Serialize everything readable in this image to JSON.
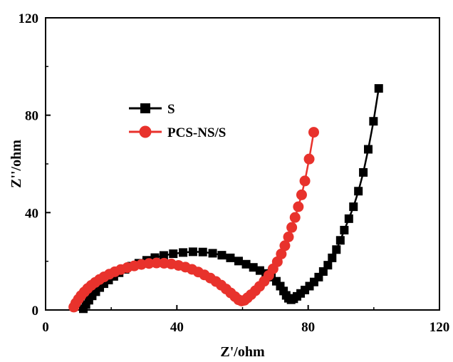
{
  "chart_data": {
    "type": "scatter",
    "xlabel": "Z'/ohm",
    "ylabel": "Z''/ohm",
    "xlim": [
      0,
      120
    ],
    "ylim": [
      0,
      120
    ],
    "xticks": [
      "0",
      "40",
      "80",
      "120"
    ],
    "yticks": [
      "0",
      "40",
      "80",
      "120"
    ],
    "legend_position": "upper-left",
    "grid": false,
    "series": [
      {
        "name": "S",
        "color": "#000000",
        "marker": "square",
        "points": [
          [
            11.5,
            0.5
          ],
          [
            12.3,
            2.2
          ],
          [
            13.2,
            4.0
          ],
          [
            14.2,
            5.8
          ],
          [
            15.3,
            7.5
          ],
          [
            16.5,
            9.2
          ],
          [
            17.8,
            10.8
          ],
          [
            19.2,
            12.3
          ],
          [
            20.8,
            13.8
          ],
          [
            22.4,
            15.3
          ],
          [
            24.2,
            16.7
          ],
          [
            26.2,
            18.0
          ],
          [
            28.4,
            19.2
          ],
          [
            30.8,
            20.4
          ],
          [
            33.3,
            21.5
          ],
          [
            36.0,
            22.4
          ],
          [
            38.9,
            23.1
          ],
          [
            41.9,
            23.6
          ],
          [
            44.9,
            23.9
          ],
          [
            47.9,
            23.8
          ],
          [
            50.9,
            23.3
          ],
          [
            53.7,
            22.5
          ],
          [
            56.3,
            21.4
          ],
          [
            58.8,
            20.1
          ],
          [
            61.1,
            18.8
          ],
          [
            63.3,
            17.5
          ],
          [
            65.3,
            16.2
          ],
          [
            67.1,
            15.0
          ],
          [
            68.8,
            13.5
          ],
          [
            70.3,
            11.8
          ],
          [
            71.5,
            9.8
          ],
          [
            72.5,
            7.8
          ],
          [
            73.3,
            6.0
          ],
          [
            74.0,
            4.8
          ],
          [
            74.8,
            4.2
          ],
          [
            75.6,
            4.6
          ],
          [
            76.6,
            5.6
          ],
          [
            77.7,
            6.8
          ],
          [
            79.0,
            8.2
          ],
          [
            80.4,
            9.8
          ],
          [
            81.8,
            11.5
          ],
          [
            83.2,
            13.5
          ],
          [
            84.6,
            15.8
          ],
          [
            86.0,
            18.4
          ],
          [
            87.3,
            21.4
          ],
          [
            88.6,
            24.8
          ],
          [
            89.8,
            28.6
          ],
          [
            91.0,
            32.8
          ],
          [
            92.4,
            37.5
          ],
          [
            93.8,
            42.4
          ],
          [
            95.3,
            48.8
          ],
          [
            96.8,
            56.5
          ],
          [
            98.3,
            66.0
          ],
          [
            99.9,
            77.5
          ],
          [
            101.5,
            91.0
          ]
        ]
      },
      {
        "name": "PCS-NS/S",
        "color": "#e8322c",
        "marker": "circle",
        "points": [
          [
            8.6,
            1.2
          ],
          [
            9.2,
            2.8
          ],
          [
            10.0,
            4.4
          ],
          [
            10.8,
            5.9
          ],
          [
            11.8,
            7.4
          ],
          [
            12.8,
            8.8
          ],
          [
            13.9,
            10.1
          ],
          [
            15.1,
            11.3
          ],
          [
            16.4,
            12.5
          ],
          [
            17.8,
            13.6
          ],
          [
            19.4,
            14.7
          ],
          [
            21.1,
            15.7
          ],
          [
            22.9,
            16.6
          ],
          [
            24.9,
            17.4
          ],
          [
            27.0,
            18.1
          ],
          [
            29.2,
            18.7
          ],
          [
            31.5,
            19.1
          ],
          [
            33.8,
            19.3
          ],
          [
            36.1,
            19.2
          ],
          [
            38.3,
            18.9
          ],
          [
            40.5,
            18.3
          ],
          [
            42.6,
            17.6
          ],
          [
            44.6,
            16.7
          ],
          [
            46.5,
            15.6
          ],
          [
            48.4,
            14.4
          ],
          [
            50.2,
            13.1
          ],
          [
            51.9,
            11.7
          ],
          [
            53.5,
            10.2
          ],
          [
            55.0,
            8.6
          ],
          [
            56.4,
            7.0
          ],
          [
            57.7,
            5.5
          ],
          [
            58.8,
            4.2
          ],
          [
            59.7,
            3.7
          ],
          [
            60.6,
            4.0
          ],
          [
            61.5,
            5.0
          ],
          [
            62.6,
            6.3
          ],
          [
            63.9,
            7.9
          ],
          [
            65.2,
            9.7
          ],
          [
            66.6,
            11.8
          ],
          [
            68.0,
            14.2
          ],
          [
            69.3,
            16.9
          ],
          [
            70.6,
            19.8
          ],
          [
            71.8,
            23.0
          ],
          [
            72.9,
            26.4
          ],
          [
            74.0,
            30.0
          ],
          [
            75.0,
            33.9
          ],
          [
            76.0,
            38.0
          ],
          [
            77.0,
            42.4
          ],
          [
            78.0,
            47.3
          ],
          [
            79.0,
            53.0
          ],
          [
            80.3,
            62.0
          ],
          [
            81.7,
            73.0
          ]
        ]
      }
    ]
  }
}
